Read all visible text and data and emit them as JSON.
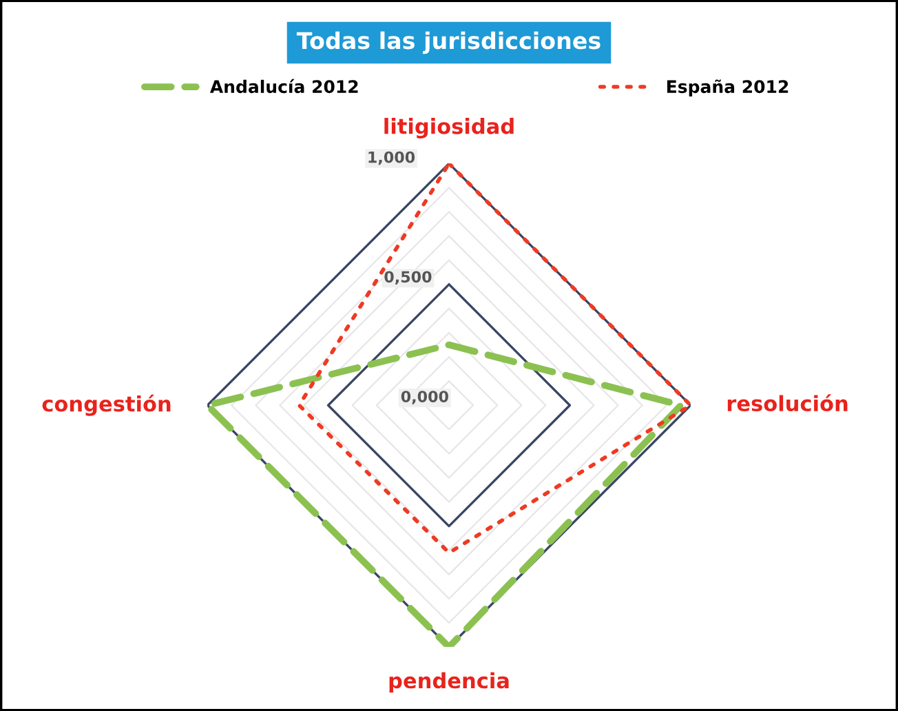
{
  "chart_data": {
    "type": "radar",
    "title": "Todas las jurisdicciones",
    "categories": [
      "litigiosidad",
      "resolución",
      "pendencia",
      "congestión"
    ],
    "series": [
      {
        "name": "Andalucía 2012",
        "color": "#8cc152",
        "values": [
          0.25,
          0.96,
          1.0,
          1.0
        ],
        "line_style": "dashed"
      },
      {
        "name": "España 2012",
        "color": "#ee3a24",
        "values": [
          1.0,
          1.0,
          0.61,
          0.62
        ],
        "line_style": "dotted"
      }
    ],
    "ylim": [
      0,
      1
    ],
    "yticks": [
      {
        "value": 0,
        "label": "0,000"
      },
      {
        "value": 0.5,
        "label": "0,500"
      },
      {
        "value": 1,
        "label": "1,000"
      }
    ],
    "legend": "top",
    "grid": true,
    "marker": "none"
  }
}
